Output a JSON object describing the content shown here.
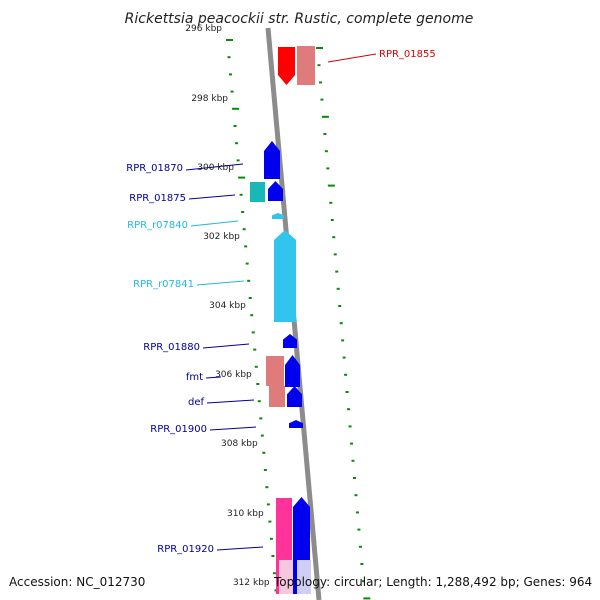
{
  "title": "Rickettsia peacockii str. Rustic, complete genome",
  "accession": "Accession: NC_012730",
  "summary": "Topology: circular; Length: 1,288,492 bp; Genes: 964",
  "colors": {
    "backbone": "#8c8c8c",
    "tick": "#0a8a0a",
    "cds": "#0000ee",
    "cds_pale": "#cfcff5",
    "pseudo": "#e07b7b",
    "red": "#ff0000",
    "cyan": "#33c4ee",
    "cyan_label": "#22b8e0",
    "teal": "#18b8b8",
    "pink": "#ff3399",
    "pink_pale": "#f7c6df",
    "label_blue": "#000099",
    "label_red": "#dd0000"
  },
  "kbp_labels": [
    "296 kbp",
    "298 kbp",
    "300 kbp",
    "302 kbp",
    "304 kbp",
    "306 kbp",
    "308 kbp",
    "310 kbp",
    "312 kbp"
  ],
  "genes": [
    {
      "name": "RPR_01855",
      "color_key": "label_red"
    },
    {
      "name": "RPR_01870",
      "color_key": "label_blue"
    },
    {
      "name": "RPR_01875",
      "color_key": "label_blue"
    },
    {
      "name": "RPR_r07840",
      "color_key": "cyan_label"
    },
    {
      "name": "RPR_r07841",
      "color_key": "cyan_label"
    },
    {
      "name": "RPR_01880",
      "color_key": "label_blue"
    },
    {
      "name": "fmt",
      "color_key": "label_blue"
    },
    {
      "name": "def",
      "color_key": "label_blue"
    },
    {
      "name": "RPR_01900",
      "color_key": "label_blue"
    },
    {
      "name": "RPR_01920",
      "color_key": "label_blue"
    }
  ]
}
